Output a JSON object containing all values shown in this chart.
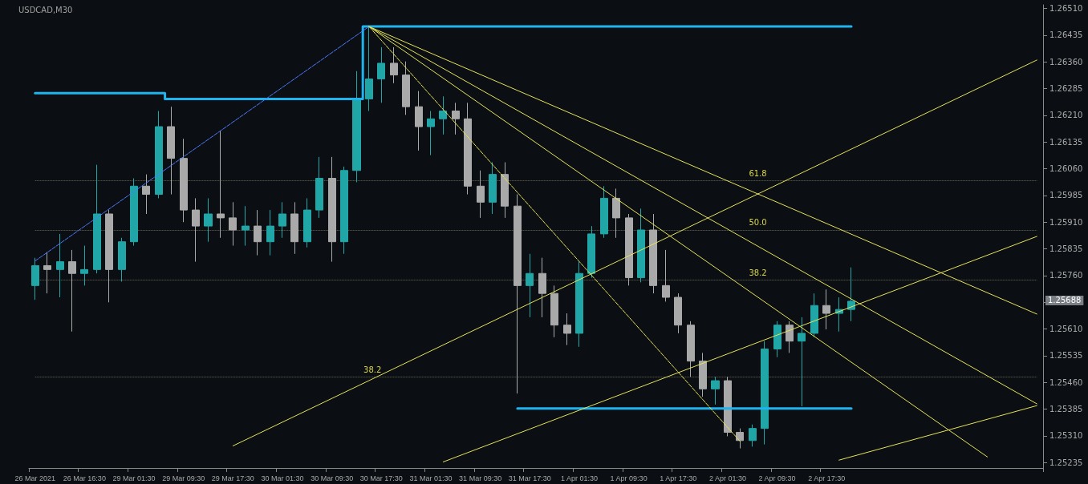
{
  "chart_data": {
    "type": "candlestick",
    "title": "USDCAD,M30",
    "categories": [
      "26 Mar 2021",
      null,
      null,
      null,
      "26 Mar 16:30",
      null,
      null,
      null,
      "29 Mar 01:30",
      null,
      null,
      null,
      "29 Mar 09:30",
      null,
      null,
      null,
      "29 Mar 17:30",
      null,
      null,
      null,
      "30 Mar 01:30",
      null,
      null,
      null,
      "30 Mar 09:30",
      null,
      null,
      null,
      "30 Mar 17:30",
      null,
      null,
      null,
      "31 Mar 01:30",
      null,
      null,
      null,
      "31 Mar 09:30",
      null,
      null,
      null,
      "31 Mar 17:30",
      null,
      null,
      null,
      "1 Apr 01:30",
      null,
      null,
      null,
      "1 Apr 09:30",
      null,
      null,
      null,
      "1 Apr 17:30",
      null,
      null,
      null,
      "2 Apr 01:30",
      null,
      null,
      null,
      "2 Apr 09:30",
      null,
      null,
      null,
      "2 Apr 17:30",
      null,
      null,
      null,
      null,
      null,
      null,
      null,
      null,
      null,
      null,
      null,
      null,
      null,
      null,
      null,
      null,
      null
    ],
    "ohlc": [
      [
        1.25732,
        1.2581,
        1.25692,
        1.25788
      ],
      [
        1.25788,
        1.25826,
        1.2571,
        1.25777
      ],
      [
        1.25777,
        1.25877,
        1.25699,
        1.25799
      ],
      [
        1.25799,
        1.25832,
        1.25603,
        1.25766
      ],
      [
        1.25766,
        1.25844,
        1.25732,
        1.25777
      ],
      [
        1.25777,
        1.26071,
        1.25766,
        1.25933
      ],
      [
        1.25933,
        1.25944,
        1.25685,
        1.25777
      ],
      [
        1.25777,
        1.25866,
        1.25743,
        1.25855
      ],
      [
        1.25855,
        1.26033,
        1.25844,
        1.26011
      ],
      [
        1.26011,
        1.26044,
        1.25933,
        1.25988
      ],
      [
        1.25988,
        1.26222,
        1.25977,
        1.26178
      ],
      [
        1.26178,
        1.26234,
        1.25988,
        1.26089
      ],
      [
        1.26089,
        1.26144,
        1.2591,
        1.25944
      ],
      [
        1.25944,
        1.25977,
        1.25799,
        1.25899
      ],
      [
        1.25899,
        1.25977,
        1.25855,
        1.25933
      ],
      [
        1.25933,
        1.26167,
        1.25866,
        1.25922
      ],
      [
        1.25922,
        1.25966,
        1.25844,
        1.25888
      ],
      [
        1.25888,
        1.25955,
        1.25844,
        1.25899
      ],
      [
        1.25899,
        1.25944,
        1.25817,
        1.25855
      ],
      [
        1.25855,
        1.25944,
        1.25817,
        1.25899
      ],
      [
        1.25899,
        1.25966,
        1.25866,
        1.25933
      ],
      [
        1.25933,
        1.25966,
        1.25821,
        1.25855
      ],
      [
        1.25855,
        1.25977,
        1.25839,
        1.25944
      ],
      [
        1.25944,
        1.26093,
        1.25922,
        1.26033
      ],
      [
        1.26033,
        1.26093,
        1.25799,
        1.25855
      ],
      [
        1.25855,
        1.26066,
        1.25821,
        1.26055
      ],
      [
        1.26055,
        1.26334,
        1.26022,
        1.26256
      ],
      [
        1.26256,
        1.26459,
        1.26222,
        1.26312
      ],
      [
        1.26312,
        1.26401,
        1.26245,
        1.26356
      ],
      [
        1.26356,
        1.26401,
        1.263,
        1.26323
      ],
      [
        1.26323,
        1.26361,
        1.26211,
        1.26234
      ],
      [
        1.26234,
        1.26278,
        1.26111,
        1.26178
      ],
      [
        1.26178,
        1.26222,
        1.26098,
        1.262
      ],
      [
        1.262,
        1.26263,
        1.26156,
        1.26222
      ],
      [
        1.26222,
        1.26245,
        1.26156,
        1.262
      ],
      [
        1.262,
        1.26245,
        1.25988,
        1.26011
      ],
      [
        1.26011,
        1.26055,
        1.25922,
        1.25966
      ],
      [
        1.25966,
        1.26078,
        1.25933,
        1.26044
      ],
      [
        1.26044,
        1.26078,
        1.25922,
        1.25955
      ],
      [
        1.25955,
        1.25988,
        1.25429,
        1.25732
      ],
      [
        1.25732,
        1.25821,
        1.25643,
        1.25766
      ],
      [
        1.25766,
        1.2581,
        1.25643,
        1.2571
      ],
      [
        1.2571,
        1.25732,
        1.25587,
        1.25621
      ],
      [
        1.25621,
        1.25654,
        1.25565,
        1.25598
      ],
      [
        1.25598,
        1.25799,
        1.2556,
        1.25766
      ],
      [
        1.25766,
        1.25899,
        1.25754,
        1.25877
      ],
      [
        1.25877,
        1.26011,
        1.25866,
        1.25977
      ],
      [
        1.25977,
        1.26004,
        1.25866,
        1.25922
      ],
      [
        1.25922,
        1.25933,
        1.25732,
        1.25754
      ],
      [
        1.25754,
        1.25948,
        1.25741,
        1.25888
      ],
      [
        1.25888,
        1.25933,
        1.2571,
        1.25732
      ],
      [
        1.25732,
        1.25832,
        1.25687,
        1.25699
      ],
      [
        1.25699,
        1.2571,
        1.25598,
        1.25621
      ],
      [
        1.25621,
        1.25632,
        1.25476,
        1.2552
      ],
      [
        1.2552,
        1.25543,
        1.2542,
        1.25442
      ],
      [
        1.25442,
        1.25476,
        1.25398,
        1.25465
      ],
      [
        1.25465,
        1.25476,
        1.25309,
        1.2532
      ],
      [
        1.2532,
        1.25331,
        1.25275,
        1.25297
      ],
      [
        1.25297,
        1.25342,
        1.2528,
        1.25331
      ],
      [
        1.25331,
        1.25576,
        1.25286,
        1.25554
      ],
      [
        1.25554,
        1.25632,
        1.25531,
        1.25621
      ],
      [
        1.25621,
        1.25632,
        1.25543,
        1.25576
      ],
      [
        1.25576,
        1.25643,
        1.25393,
        1.25598
      ],
      [
        1.25598,
        1.2571,
        1.25587,
        1.25676
      ],
      [
        1.25676,
        1.25721,
        1.25609,
        1.25654
      ],
      [
        1.25654,
        1.25699,
        1.25603,
        1.25665
      ],
      [
        1.25665,
        1.25783,
        1.25632,
        1.25688
      ],
      null,
      null,
      null,
      null,
      null,
      null,
      null,
      null,
      null,
      null,
      null,
      null,
      null,
      null,
      null
    ],
    "colors": [
      "#20a6a6",
      "#a9a9a9",
      "#20a6a6",
      "#a9a9a9",
      "#20a6a6",
      "#20a6a6",
      "#a9a9a9",
      "#20a6a6",
      "#20a6a6",
      "#a9a9a9",
      "#20a6a6",
      "#a9a9a9",
      "#a9a9a9",
      "#a9a9a9",
      "#20a6a6",
      "#a9a9a9",
      "#a9a9a9",
      "#20a6a6",
      "#a9a9a9",
      "#20a6a6",
      "#20a6a6",
      "#a9a9a9",
      "#20a6a6",
      "#20a6a6",
      "#a9a9a9",
      "#20a6a6",
      "#20a6a6",
      "#20a6a6",
      "#20a6a6",
      "#a9a9a9",
      "#a9a9a9",
      "#a9a9a9",
      "#20a6a6",
      "#20a6a6",
      "#a9a9a9",
      "#a9a9a9",
      "#a9a9a9",
      "#20a6a6",
      "#a9a9a9",
      "#a9a9a9",
      "#20a6a6",
      "#a9a9a9",
      "#a9a9a9",
      "#a9a9a9",
      "#20a6a6",
      "#20a6a6",
      "#20a6a6",
      "#a9a9a9",
      "#a9a9a9",
      "#20a6a6",
      "#a9a9a9",
      "#a9a9a9",
      "#a9a9a9",
      "#a9a9a9",
      "#a9a9a9",
      "#20a6a6",
      "#a9a9a9",
      "#a9a9a9",
      "#20a6a6",
      "#20a6a6",
      "#20a6a6",
      "#a9a9a9",
      "#20a6a6",
      "#20a6a6",
      "#a9a9a9",
      "#20a6a6",
      "#20a6a6",
      null,
      null,
      null,
      null,
      null,
      null,
      null,
      null,
      null,
      null,
      null,
      null,
      null,
      null,
      null
    ],
    "series": [
      {
        "type": "step",
        "color": "#1eb4f0",
        "values": [
          1.26272,
          1.26272,
          1.26272,
          1.26272,
          1.26272,
          1.26272,
          1.26272,
          1.26272,
          1.26272,
          1.26272,
          1.26272,
          1.26256,
          1.26256,
          1.26256,
          1.26256,
          1.26256,
          1.26256,
          1.26256,
          1.26256,
          1.26256,
          1.26256,
          1.26256,
          1.26256,
          1.26256,
          1.26256,
          1.26256,
          1.26256,
          1.26459,
          1.26459,
          1.26459,
          1.26459,
          1.26459,
          1.26459,
          1.26459,
          1.26459,
          1.26459,
          1.26459,
          1.26459,
          1.26459,
          1.26459,
          1.26459,
          1.26459,
          1.26459,
          1.26459,
          1.26459,
          1.26459,
          1.26459,
          1.26459,
          1.26459,
          1.26459,
          1.26459,
          1.26459,
          1.26459,
          1.26459,
          1.26459,
          1.26459,
          1.26459,
          1.26459,
          1.26459,
          1.26459,
          1.26459,
          1.26459,
          1.26459,
          1.26459,
          1.26459,
          1.26459,
          1.26459,
          null,
          null,
          null,
          null,
          null,
          null,
          null,
          null,
          null,
          null,
          null,
          null,
          null,
          null,
          null
        ]
      },
      {
        "type": "step",
        "color": "#1eb4f0",
        "values": [
          null,
          null,
          null,
          null,
          null,
          null,
          null,
          null,
          null,
          null,
          null,
          null,
          null,
          null,
          null,
          null,
          null,
          null,
          null,
          null,
          null,
          null,
          null,
          null,
          null,
          null,
          null,
          null,
          null,
          null,
          null,
          null,
          null,
          null,
          null,
          null,
          null,
          null,
          null,
          1.25387,
          1.25387,
          1.25387,
          1.25387,
          1.25387,
          1.25387,
          1.25387,
          1.25387,
          1.25387,
          1.25387,
          1.25387,
          1.25387,
          1.25387,
          1.25387,
          1.25387,
          1.25387,
          1.25387,
          1.25387,
          1.25387,
          1.25387,
          1.25387,
          1.25387,
          1.25387,
          1.25387,
          1.25387,
          1.25387,
          1.25387,
          1.25387,
          null,
          null,
          null,
          null,
          null,
          null,
          null,
          null,
          null,
          null,
          null,
          null,
          null,
          null,
          null
        ]
      },
      {
        "type": "line",
        "line_style": "dashed",
        "color": "#4f7cff",
        "values": [
          1.25801,
          null,
          null,
          null,
          null,
          null,
          null,
          null,
          null,
          null,
          null,
          null,
          null,
          null,
          null,
          null,
          null,
          null,
          null,
          null,
          null,
          null,
          null,
          null,
          null,
          null,
          null,
          1.26459,
          null,
          null,
          null,
          null,
          null,
          null,
          null,
          null,
          null,
          null,
          null,
          null,
          null,
          null,
          null,
          null,
          null,
          null,
          null,
          null,
          null,
          null,
          null,
          null,
          null,
          null,
          null,
          null,
          null,
          null,
          null,
          null,
          null,
          null,
          null,
          null,
          null,
          null,
          null,
          null,
          null,
          null,
          null,
          null,
          null,
          null,
          null,
          null,
          null,
          null,
          null,
          null,
          null,
          null
        ]
      },
      {
        "type": "line",
        "line_style": "solid",
        "color": "#e6e35a",
        "values": [
          null,
          null,
          null,
          null,
          null,
          null,
          null,
          null,
          null,
          null,
          null,
          null,
          null,
          null,
          null,
          null,
          null,
          null,
          null,
          null,
          null,
          null,
          null,
          null,
          null,
          null,
          null,
          1.26459,
          null,
          null,
          null,
          null,
          null,
          null,
          null,
          null,
          null,
          null,
          null,
          null,
          null,
          null,
          null,
          null,
          null,
          null,
          null,
          null,
          null,
          null,
          null,
          null,
          null,
          null,
          null,
          null,
          null,
          null,
          null,
          null,
          null,
          null,
          null,
          null,
          null,
          null,
          null,
          null,
          null,
          null,
          null,
          null,
          null,
          null,
          null,
          null,
          null,
          null,
          null,
          null,
          null,
          1.25652
        ]
      },
      {
        "type": "line",
        "line_style": "solid",
        "color": "#e6e35a",
        "values": [
          null,
          null,
          null,
          null,
          null,
          null,
          null,
          null,
          null,
          null,
          null,
          null,
          null,
          null,
          null,
          null,
          null,
          null,
          null,
          null,
          null,
          null,
          null,
          null,
          null,
          null,
          null,
          1.26459,
          null,
          null,
          null,
          null,
          null,
          null,
          null,
          null,
          null,
          null,
          null,
          null,
          null,
          null,
          null,
          null,
          null,
          null,
          null,
          null,
          null,
          null,
          null,
          null,
          null,
          null,
          null,
          null,
          null,
          null,
          null,
          null,
          null,
          null,
          null,
          null,
          null,
          null,
          null,
          null,
          null,
          null,
          null,
          null,
          null,
          null,
          null,
          null,
          null,
          null,
          null,
          null,
          null,
          1.254
        ]
      },
      {
        "type": "line",
        "line_style": "solid",
        "color": "#e6e35a",
        "values": [
          null,
          null,
          null,
          null,
          null,
          null,
          null,
          null,
          null,
          null,
          null,
          null,
          null,
          null,
          null,
          null,
          null,
          null,
          null,
          null,
          null,
          null,
          null,
          null,
          null,
          null,
          null,
          1.26459,
          null,
          null,
          null,
          null,
          null,
          null,
          null,
          null,
          null,
          null,
          null,
          null,
          null,
          null,
          null,
          null,
          null,
          null,
          null,
          null,
          null,
          null,
          null,
          null,
          null,
          null,
          null,
          null,
          null,
          null,
          null,
          null,
          null,
          null,
          null,
          null,
          null,
          null,
          null,
          null,
          null,
          null,
          null,
          null,
          null,
          null,
          null,
          null,
          null,
          1.25251,
          null,
          null,
          null,
          null
        ]
      },
      {
        "type": "line",
        "line_style": "dashed",
        "color": "#e6e35a",
        "values": [
          null,
          null,
          null,
          null,
          null,
          null,
          null,
          null,
          null,
          null,
          null,
          null,
          null,
          null,
          null,
          null,
          null,
          null,
          null,
          null,
          null,
          null,
          null,
          null,
          null,
          null,
          null,
          1.26459,
          null,
          null,
          null,
          null,
          null,
          null,
          null,
          null,
          null,
          null,
          null,
          null,
          null,
          null,
          null,
          null,
          null,
          null,
          null,
          null,
          null,
          null,
          null,
          null,
          null,
          null,
          null,
          null,
          null,
          1.25295,
          null,
          null,
          null,
          null,
          null,
          null,
          null,
          null,
          null,
          null,
          null,
          null,
          null,
          null,
          null,
          null,
          null,
          null,
          null,
          null,
          null,
          null,
          null,
          null
        ]
      },
      {
        "type": "line",
        "line_style": "solid",
        "color": "#e6e35a",
        "values": [
          null,
          null,
          null,
          null,
          null,
          null,
          null,
          null,
          null,
          null,
          null,
          null,
          null,
          null,
          null,
          null,
          1.25282,
          null,
          null,
          null,
          null,
          null,
          null,
          null,
          null,
          null,
          null,
          null,
          null,
          null,
          null,
          null,
          null,
          null,
          null,
          null,
          null,
          null,
          null,
          null,
          null,
          null,
          null,
          null,
          null,
          null,
          null,
          null,
          null,
          null,
          null,
          null,
          null,
          null,
          null,
          null,
          null,
          null,
          null,
          null,
          null,
          null,
          null,
          null,
          null,
          null,
          null,
          null,
          null,
          null,
          null,
          null,
          null,
          null,
          null,
          null,
          null,
          null,
          null,
          null,
          null,
          1.26365
        ]
      },
      {
        "type": "line",
        "line_style": "solid",
        "color": "#e6e35a",
        "values": [
          null,
          null,
          null,
          null,
          null,
          null,
          null,
          null,
          null,
          null,
          null,
          null,
          null,
          null,
          null,
          null,
          null,
          null,
          null,
          null,
          null,
          null,
          null,
          null,
          null,
          null,
          null,
          null,
          null,
          null,
          null,
          null,
          null,
          1.25237,
          null,
          null,
          null,
          null,
          null,
          null,
          null,
          null,
          null,
          null,
          null,
          null,
          null,
          null,
          null,
          null,
          null,
          null,
          null,
          null,
          null,
          null,
          null,
          null,
          null,
          null,
          null,
          null,
          null,
          null,
          null,
          null,
          null,
          null,
          null,
          null,
          null,
          null,
          null,
          null,
          null,
          null,
          null,
          null,
          null,
          null,
          null,
          1.2587
        ]
      },
      {
        "type": "line",
        "line_style": "solid",
        "color": "#e6e35a",
        "values": [
          null,
          null,
          null,
          null,
          null,
          null,
          null,
          null,
          null,
          null,
          null,
          null,
          null,
          null,
          null,
          null,
          null,
          null,
          null,
          null,
          null,
          null,
          null,
          null,
          null,
          null,
          null,
          null,
          null,
          null,
          null,
          null,
          null,
          null,
          null,
          null,
          null,
          null,
          null,
          null,
          null,
          null,
          null,
          null,
          null,
          null,
          null,
          null,
          null,
          null,
          null,
          null,
          null,
          null,
          null,
          null,
          null,
          null,
          null,
          null,
          null,
          null,
          null,
          null,
          null,
          1.25242,
          null,
          null,
          null,
          null,
          null,
          null,
          null,
          null,
          null,
          null,
          null,
          null,
          null,
          null,
          null,
          1.25395
        ]
      }
    ],
    "ref_lines": [
      {
        "axis": "y",
        "value": 1.26026,
        "color": "#6a6a50",
        "line_style": "dotted"
      },
      {
        "axis": "y",
        "value": 1.25888,
        "color": "#6a6a50",
        "line_style": "dotted"
      },
      {
        "axis": "y",
        "value": 1.25748,
        "color": "#6a6a50",
        "line_style": "dotted"
      },
      {
        "axis": "y",
        "value": 1.25476,
        "color": "#6a6a50",
        "line_style": "dotted"
      }
    ],
    "annotations": [
      "61.8",
      "50.0",
      "38.2",
      "38.2",
      "1.25688"
    ],
    "ylim": [
      1.2522,
      1.2652
    ],
    "yticks": [
      {
        "value": 1.2651,
        "label": "1.26510"
      },
      1.26435,
      {
        "value": 1.2636,
        "label": "1.26360"
      },
      1.26285,
      {
        "value": 1.2621,
        "label": "1.26210"
      },
      1.26135,
      {
        "value": 1.2606,
        "label": "1.26060"
      },
      1.25985,
      {
        "value": 1.2591,
        "label": "1.25910"
      },
      1.25835,
      {
        "value": 1.2576,
        "label": "1.25760"
      },
      {
        "value": 1.25685,
        "label": null
      },
      {
        "value": 1.2561,
        "label": "1.25610"
      },
      1.25535,
      {
        "value": 1.2546,
        "label": "1.25460"
      },
      1.25385,
      {
        "value": 1.2531,
        "label": "1.25310"
      },
      1.25235
    ],
    "grid": false,
    "marker": "none"
  }
}
